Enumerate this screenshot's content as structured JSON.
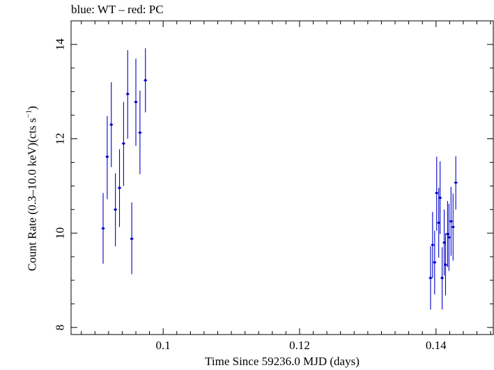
{
  "chart_data": {
    "type": "scatter",
    "title": "blue: WT – red: PC",
    "xlabel": "Time Since 59236.0 MJD (days)",
    "ylabel_main": "Count Rate (0.3–10.0 keV)(cts s",
    "ylabel_sup": "−1",
    "ylabel_end": ")",
    "xlim": [
      0.0865,
      0.1484
    ],
    "ylim": [
      7.85,
      14.5
    ],
    "xticks": [
      0.1,
      0.12,
      0.14
    ],
    "xtick_labels": [
      "0.1",
      "0.12",
      "0.14"
    ],
    "yticks": [
      8,
      10,
      12,
      14
    ],
    "ytick_labels": [
      "8",
      "10",
      "12",
      "14"
    ],
    "grid": false,
    "series": [
      {
        "color": "#0000cc",
        "points": [
          {
            "x": 0.0912,
            "y": 10.1,
            "ylo": 9.35,
            "yhi": 10.85
          },
          {
            "x": 0.0918,
            "y": 11.62,
            "ylo": 10.72,
            "yhi": 12.48
          },
          {
            "x": 0.0924,
            "y": 12.3,
            "ylo": 11.4,
            "yhi": 13.2
          },
          {
            "x": 0.093,
            "y": 10.5,
            "ylo": 9.72,
            "yhi": 11.27
          },
          {
            "x": 0.0936,
            "y": 10.96,
            "ylo": 10.13,
            "yhi": 11.78
          },
          {
            "x": 0.0942,
            "y": 11.9,
            "ylo": 11.0,
            "yhi": 12.78
          },
          {
            "x": 0.0948,
            "y": 12.95,
            "ylo": 12.0,
            "yhi": 13.88
          },
          {
            "x": 0.0954,
            "y": 9.88,
            "ylo": 9.13,
            "yhi": 10.65
          },
          {
            "x": 0.096,
            "y": 12.78,
            "ylo": 11.85,
            "yhi": 13.7
          },
          {
            "x": 0.0966,
            "y": 12.13,
            "ylo": 11.25,
            "yhi": 13.02
          },
          {
            "x": 0.0974,
            "y": 13.24,
            "ylo": 12.56,
            "yhi": 13.92
          },
          {
            "x": 0.1392,
            "y": 9.05,
            "ylo": 8.38,
            "yhi": 9.72
          },
          {
            "x": 0.1395,
            "y": 9.75,
            "ylo": 9.05,
            "yhi": 10.45
          },
          {
            "x": 0.1398,
            "y": 9.38,
            "ylo": 8.7,
            "yhi": 10.05
          },
          {
            "x": 0.1401,
            "y": 10.85,
            "ylo": 10.05,
            "yhi": 11.62
          },
          {
            "x": 0.1404,
            "y": 10.22,
            "ylo": 9.48,
            "yhi": 10.96
          },
          {
            "x": 0.1406,
            "y": 10.75,
            "ylo": 9.98,
            "yhi": 11.52
          },
          {
            "x": 0.1409,
            "y": 9.05,
            "ylo": 8.38,
            "yhi": 9.7
          },
          {
            "x": 0.1412,
            "y": 9.8,
            "ylo": 9.1,
            "yhi": 10.5
          },
          {
            "x": 0.1414,
            "y": 9.33,
            "ylo": 8.68,
            "yhi": 10.0
          },
          {
            "x": 0.1417,
            "y": 9.98,
            "ylo": 9.28,
            "yhi": 10.68
          },
          {
            "x": 0.1419,
            "y": 9.91,
            "ylo": 9.2,
            "yhi": 10.62
          },
          {
            "x": 0.1422,
            "y": 10.25,
            "ylo": 9.52,
            "yhi": 10.98
          },
          {
            "x": 0.1425,
            "y": 10.13,
            "ylo": 9.42,
            "yhi": 10.84
          },
          {
            "x": 0.1429,
            "y": 11.07,
            "ylo": 10.5,
            "yhi": 11.63
          }
        ]
      }
    ]
  }
}
